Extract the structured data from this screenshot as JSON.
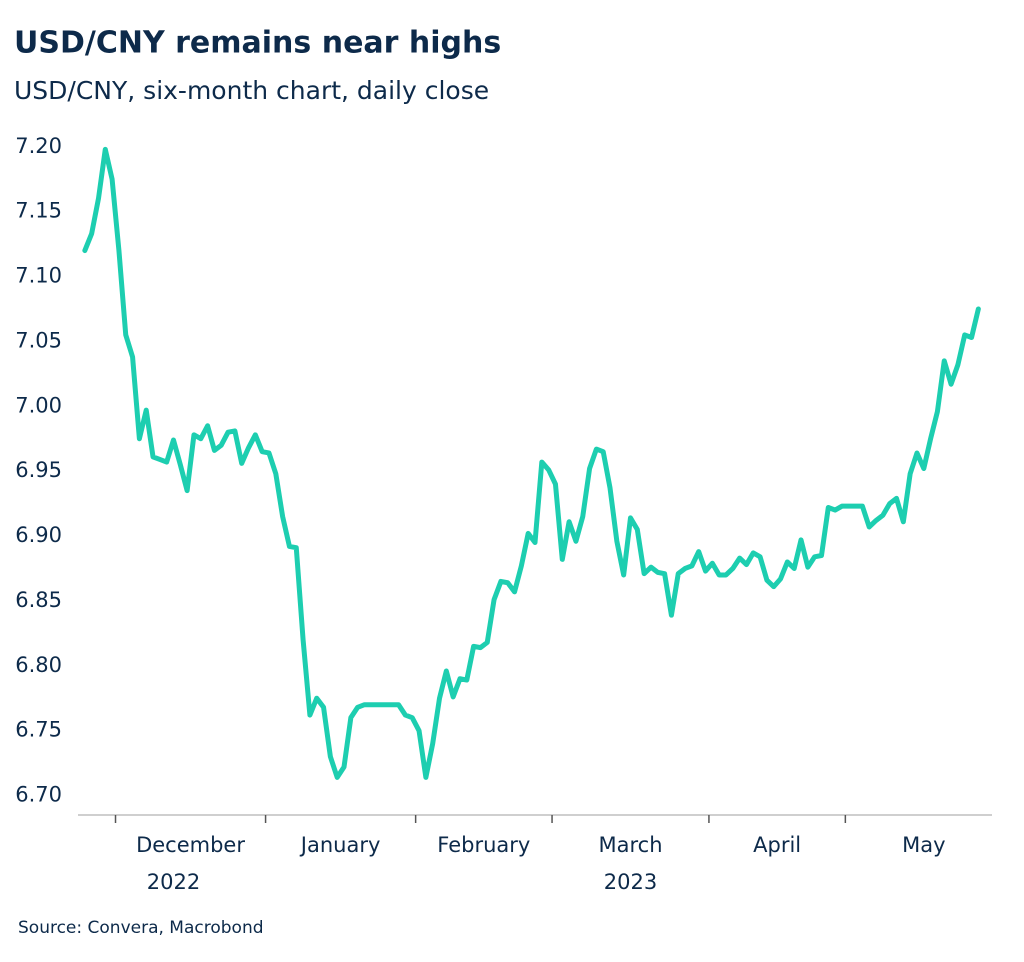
{
  "chart_data": {
    "type": "line",
    "title": "USD/CNY remains near highs",
    "subtitle": "USD/CNY, six-month chart, daily close",
    "source": "Source: Convera, Macrobond",
    "series": [
      {
        "name": "USD/CNY",
        "color": "#1dceb0",
        "values": [
          7.12,
          7.133,
          7.16,
          7.198,
          7.175,
          7.12,
          7.055,
          7.038,
          6.975,
          6.997,
          6.961,
          6.959,
          6.957,
          6.974,
          6.955,
          6.935,
          6.978,
          6.975,
          6.985,
          6.966,
          6.97,
          6.98,
          6.981,
          6.956,
          6.968,
          6.978,
          6.965,
          6.964,
          6.948,
          6.915,
          6.892,
          6.891,
          6.82,
          6.762,
          6.775,
          6.768,
          6.73,
          6.714,
          6.722,
          6.76,
          6.768,
          6.77,
          6.77,
          6.77,
          6.77,
          6.77,
          6.77,
          6.762,
          6.76,
          6.75,
          6.714,
          6.74,
          6.775,
          6.796,
          6.776,
          6.79,
          6.789,
          6.815,
          6.814,
          6.818,
          6.851,
          6.865,
          6.864,
          6.857,
          6.877,
          6.902,
          6.895,
          6.957,
          6.951,
          6.94,
          6.882,
          6.911,
          6.896,
          6.915,
          6.952,
          6.967,
          6.965,
          6.937,
          6.896,
          6.87,
          6.914,
          6.905,
          6.871,
          6.876,
          6.872,
          6.871,
          6.839,
          6.871,
          6.875,
          6.877,
          6.888,
          6.873,
          6.879,
          6.87,
          6.87,
          6.875,
          6.883,
          6.878,
          6.887,
          6.884,
          6.866,
          6.861,
          6.867,
          6.88,
          6.875,
          6.897,
          6.876,
          6.884,
          6.885,
          6.922,
          6.92,
          6.923,
          6.923,
          6.923,
          6.923,
          6.907,
          6.912,
          6.916,
          6.925,
          6.929,
          6.911,
          6.948,
          6.964,
          6.952,
          6.975,
          6.996,
          7.035,
          7.017,
          7.032,
          7.055,
          7.053,
          7.075
        ]
      }
    ],
    "xlim": [
      -1,
      133
    ],
    "xticks": [
      4.5,
      26.5,
      48.5,
      68.5,
      91.5,
      111.5
    ],
    "xlabels": [
      {
        "value": 15.5,
        "label": "December"
      },
      {
        "value": 37.5,
        "label": "January"
      },
      {
        "value": 58.5,
        "label": "February"
      },
      {
        "value": 80,
        "label": "March"
      },
      {
        "value": 101.5,
        "label": "April"
      },
      {
        "value": 123,
        "label": "May"
      }
    ],
    "year_labels": [
      {
        "value": 13,
        "label": "2022"
      },
      {
        "value": 80,
        "label": "2023"
      }
    ],
    "ylim": [
      6.685,
      7.216
    ],
    "yticks": [
      {
        "value": 6.7,
        "label": "6.70"
      },
      6.75,
      {
        "value": 6.8,
        "label": "6.80"
      },
      6.85,
      {
        "value": 6.9,
        "label": "6.90"
      },
      6.95,
      {
        "value": 7.0,
        "label": "7.00"
      },
      7.05,
      {
        "value": 7.1,
        "label": "7.10"
      },
      7.15,
      {
        "value": 7.2,
        "label": "7.20"
      }
    ],
    "grid": false
  }
}
